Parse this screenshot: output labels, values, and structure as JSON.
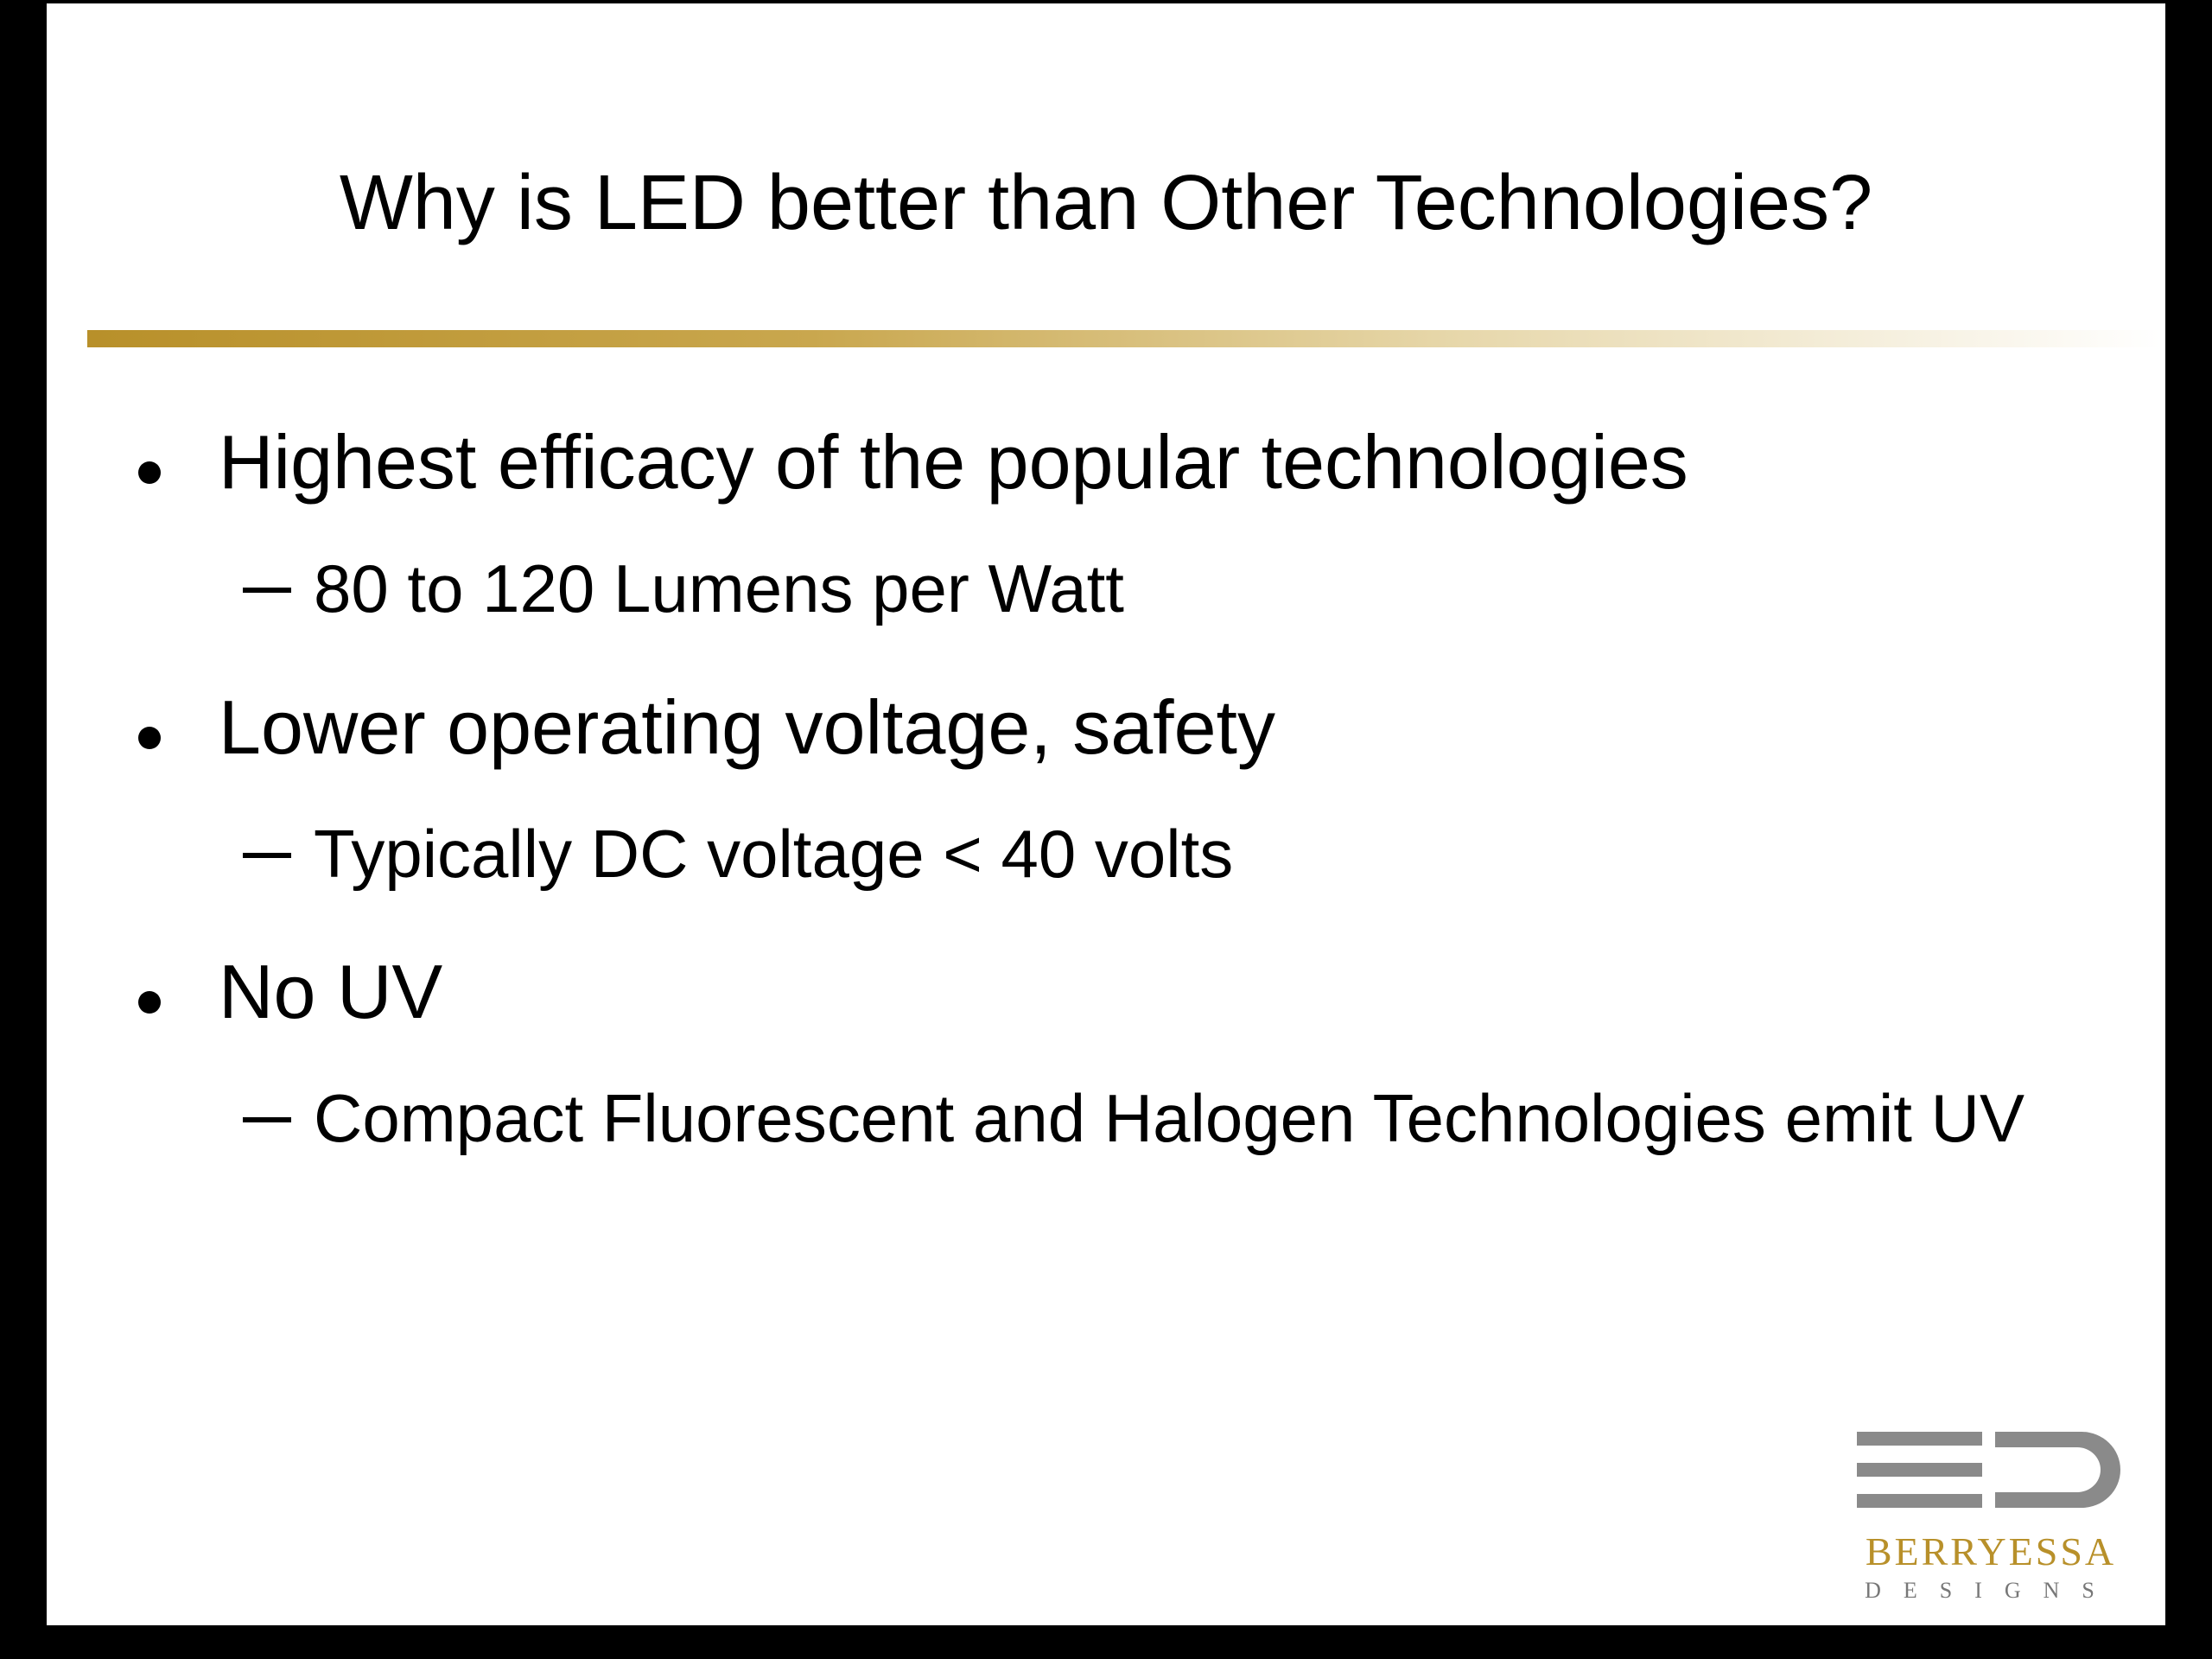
{
  "slide": {
    "title": "Why is LED better than Other Technologies?",
    "bullets": [
      {
        "text": "Highest efficacy of the popular technologies",
        "sub": "80 to 120 Lumens per Watt"
      },
      {
        "text": "Lower operating voltage, safety",
        "sub": "Typically DC voltage < 40 volts"
      },
      {
        "text": "No UV",
        "sub": "Compact Fluorescent and Halogen Technologies emit UV"
      }
    ],
    "logo": {
      "name": "BERRYESSA",
      "tagline": "DESIGNS"
    }
  }
}
